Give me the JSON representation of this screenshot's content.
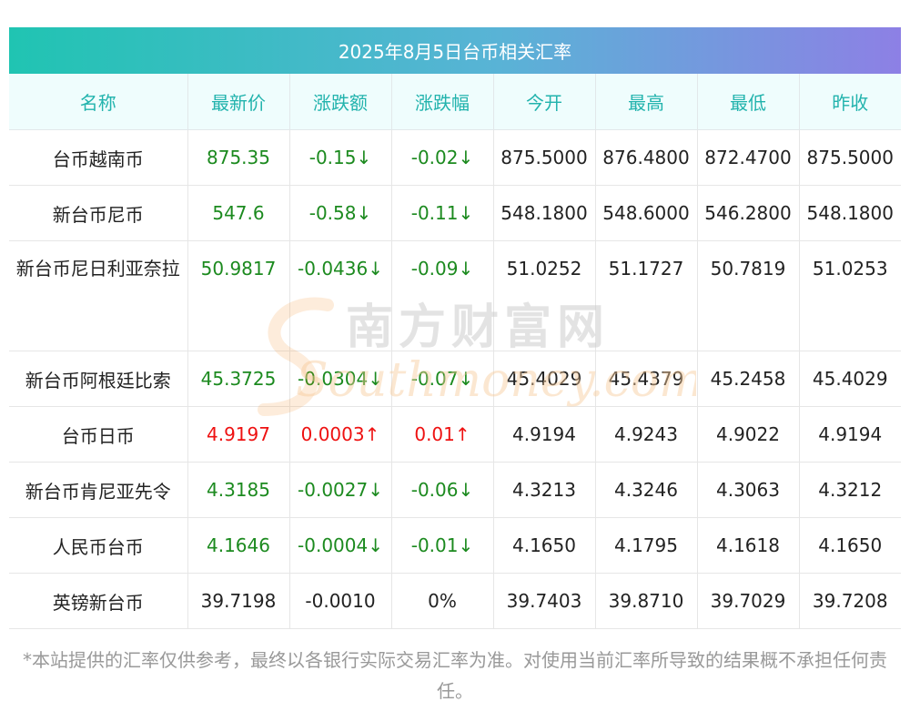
{
  "title": "2025年8月5日台币相关汇率",
  "headers": [
    "名称",
    "最新价",
    "涨跌额",
    "涨跌幅",
    "今开",
    "最高",
    "最低",
    "昨收"
  ],
  "rows": [
    {
      "name": "台币越南币",
      "latest": "875.35",
      "change": "-0.15↓",
      "pct": "-0.02↓",
      "open": "875.5000",
      "high": "876.4800",
      "low": "872.4700",
      "prev": "875.5000",
      "trend": "down"
    },
    {
      "name": "新台币尼币",
      "latest": "547.6",
      "change": "-0.58↓",
      "pct": "-0.11↓",
      "open": "548.1800",
      "high": "548.6000",
      "low": "546.2800",
      "prev": "548.1800",
      "trend": "down"
    },
    {
      "name": "新台币尼日利亚奈拉",
      "latest": "50.9817",
      "change": "-0.0436↓",
      "pct": "-0.09↓",
      "open": "51.0252",
      "high": "51.1727",
      "low": "50.7819",
      "prev": "51.0253",
      "trend": "down"
    },
    {
      "name": "新台币阿根廷比索",
      "latest": "45.3725",
      "change": "-0.0304↓",
      "pct": "-0.07↓",
      "open": "45.4029",
      "high": "45.4379",
      "low": "45.2458",
      "prev": "45.4029",
      "trend": "down"
    },
    {
      "name": "台币日币",
      "latest": "4.9197",
      "change": "0.0003↑",
      "pct": "0.01↑",
      "open": "4.9194",
      "high": "4.9243",
      "low": "4.9022",
      "prev": "4.9194",
      "trend": "up"
    },
    {
      "name": "新台币肯尼亚先令",
      "latest": "4.3185",
      "change": "-0.0027↓",
      "pct": "-0.06↓",
      "open": "4.3213",
      "high": "4.3246",
      "low": "4.3063",
      "prev": "4.3212",
      "trend": "down"
    },
    {
      "name": "人民币台币",
      "latest": "4.1646",
      "change": "-0.0004↓",
      "pct": "-0.01↓",
      "open": "4.1650",
      "high": "4.1795",
      "low": "4.1618",
      "prev": "4.1650",
      "trend": "down"
    },
    {
      "name": "英镑新台币",
      "latest": "39.7198",
      "change": "-0.0010",
      "pct": "0%",
      "open": "39.7403",
      "high": "39.8710",
      "low": "39.7029",
      "prev": "39.7208",
      "trend": "flat"
    }
  ],
  "watermark": {
    "cn": "南方财富网",
    "en": "Southmoney.com"
  },
  "disclaimer": "*本站提供的汇率仅供参考，最终以各银行实际交易汇率为准。对使用当前汇率所导致的结果概不承担任何责任。",
  "colors": {
    "down": "#1c8a1f",
    "up": "#ee1111",
    "header_text": "#22b3ad",
    "header_bg": "#effdfd"
  }
}
